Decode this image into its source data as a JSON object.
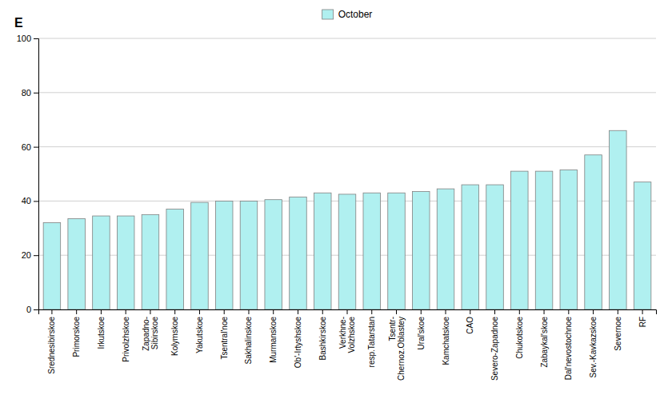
{
  "chart_data": {
    "type": "bar",
    "y_label": "E",
    "categories": [
      "Srednesibirskoe",
      "Primorskoe",
      "Irkutskoe",
      "Privolzhskoe",
      "Zapadno-\nSibirskoe",
      "Kolymskoe",
      "Yakutskoe",
      "Tsentral'noe",
      "Sakhalinskoe",
      "Murmanskoe",
      "Ob'-Irtyshskoe",
      "Bashkirskoe",
      "Verkhne-\nVolzhskoe",
      "resp.Tatarstan",
      "Tsentr-\nChernoz.Oblastey",
      "Ural'skoe",
      "Kamchatskoe",
      "CAO",
      "Severo-Zapadnoe",
      "Chukotskoe",
      "Zabaykal'skoe",
      "Dal'nevostochnoe",
      "Sev.-Kavkazskoe",
      "Severnoe",
      "RF"
    ],
    "series": [
      {
        "name": "October",
        "color": "#b0f0f0",
        "values": [
          32,
          33.5,
          34.5,
          34.5,
          35,
          37,
          39.5,
          40,
          40,
          40.5,
          41.5,
          43,
          42.5,
          43,
          43,
          43.5,
          44.5,
          46,
          46,
          51,
          51,
          51.5,
          57,
          66,
          47
        ]
      }
    ],
    "ylim": [
      0,
      100
    ],
    "yticks": [
      0,
      20,
      40,
      60,
      80,
      100
    ],
    "grid": true,
    "legend": "top"
  }
}
